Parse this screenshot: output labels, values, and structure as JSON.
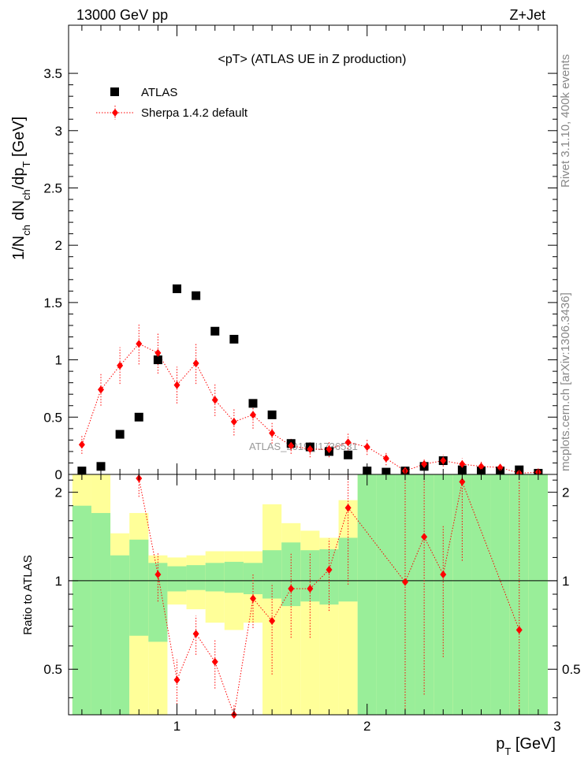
{
  "header": {
    "left": "13000 GeV pp",
    "right": "Z+Jet"
  },
  "side_labels": {
    "rivet": "Rivet 3.1.10,  400k events",
    "mcplots": "mcplots.cern.ch [arXiv:1306.3436]"
  },
  "chart_data": [
    {
      "type": "scatter",
      "title": "<pT>  (ATLAS UE in Z production)",
      "ylabel_parts": [
        "1/N",
        "ch",
        " dN",
        "ch",
        "/dp",
        "T",
        " [GeV]"
      ],
      "xlim": [
        0.43,
        3.0
      ],
      "ylim": [
        0,
        3.92
      ],
      "yticks": [
        0,
        0.5,
        1,
        1.5,
        2,
        2.5,
        3,
        3.5
      ],
      "ytick_labels": [
        "0",
        "0.5",
        "1",
        "1.5",
        "2",
        "2.5",
        "3",
        "3.5"
      ],
      "legend_position": "top-left",
      "watermark": "ATLAS_2019_I1736531",
      "x": [
        0.5,
        0.6,
        0.7,
        0.8,
        0.9,
        1.0,
        1.1,
        1.2,
        1.3,
        1.4,
        1.5,
        1.6,
        1.7,
        1.8,
        1.9,
        2.0,
        2.1,
        2.2,
        2.3,
        2.4,
        2.5,
        2.6,
        2.7,
        2.8,
        2.9
      ],
      "series": [
        {
          "name": "ATLAS",
          "color": "#000000",
          "marker": "square",
          "values": [
            0.03,
            0.07,
            0.35,
            0.5,
            1.0,
            1.62,
            1.56,
            1.25,
            1.18,
            0.62,
            0.52,
            0.27,
            0.24,
            0.2,
            0.17,
            0.03,
            0.02,
            0.03,
            0.07,
            0.12,
            0.04,
            0.03,
            0.03,
            0.04,
            0.01
          ]
        },
        {
          "name": "Sherpa 1.4.2 default",
          "color": "#ff0000",
          "marker": "diamond",
          "line": "dotted",
          "values": [
            0.26,
            0.74,
            0.95,
            1.14,
            1.06,
            0.78,
            0.97,
            0.65,
            0.46,
            0.52,
            0.36,
            0.25,
            0.22,
            0.22,
            0.28,
            0.24,
            0.14,
            0.03,
            0.09,
            0.12,
            0.09,
            0.07,
            0.06,
            0.01,
            0.02
          ],
          "errors": [
            0.08,
            0.14,
            0.16,
            0.18,
            0.18,
            0.16,
            0.18,
            0.14,
            0.12,
            0.12,
            0.09,
            0.07,
            0.07,
            0.07,
            0.08,
            0.07,
            0.06,
            0.03,
            0.04,
            0.05,
            0.05,
            0.04,
            0.03,
            0.02,
            0.02
          ]
        }
      ]
    },
    {
      "type": "scatter",
      "ylabel": "Ratio to ATLAS",
      "xlabel_main": "p",
      "xlabel_sub": "T",
      "xlabel_unit": " [GeV]",
      "xlim": [
        0.43,
        3.0
      ],
      "ylim": [
        0.35,
        2.3
      ],
      "xticks": [
        1,
        2,
        3
      ],
      "xtick_labels": [
        "1",
        "2",
        "3"
      ],
      "yticks": [
        0.5,
        1,
        2
      ],
      "ytick_labels": [
        "0.5",
        "1",
        "2"
      ],
      "reference_line": 1,
      "bin_edges": [
        0.45,
        0.55,
        0.65,
        0.75,
        0.85,
        0.95,
        1.05,
        1.15,
        1.25,
        1.35,
        1.45,
        1.55,
        1.65,
        1.75,
        1.85,
        1.95,
        2.05,
        2.15,
        2.25,
        2.35,
        2.45,
        2.55,
        2.65,
        2.75,
        2.85,
        2.95
      ],
      "bands": {
        "green_color": "#99ee99",
        "yellow_color": "#ffff99",
        "green_low": [
          0.35,
          0.35,
          0.35,
          0.65,
          0.62,
          0.92,
          0.93,
          0.92,
          0.91,
          0.9,
          0.87,
          0.82,
          0.85,
          0.83,
          0.85,
          0.35,
          0.35,
          0.35,
          0.35,
          0.35,
          0.35,
          0.35,
          0.35,
          0.35,
          0.35
        ],
        "green_high": [
          1.8,
          1.7,
          1.22,
          1.38,
          1.15,
          1.12,
          1.13,
          1.15,
          1.16,
          1.15,
          1.27,
          1.35,
          1.27,
          1.28,
          1.4,
          2.3,
          2.3,
          2.3,
          2.3,
          2.3,
          2.3,
          2.3,
          2.3,
          2.3,
          2.3
        ],
        "yellow_low": [
          0.35,
          0.35,
          0.5,
          0.35,
          0.35,
          0.83,
          0.8,
          0.72,
          0.68,
          0.72,
          0.35,
          0.35,
          0.35,
          0.35,
          0.35,
          0.35,
          0.35,
          0.35,
          0.35,
          0.35,
          0.35,
          0.35,
          0.35,
          0.35,
          0.35
        ],
        "yellow_high": [
          2.3,
          2.3,
          1.45,
          1.7,
          1.22,
          1.2,
          1.22,
          1.26,
          1.26,
          1.26,
          1.82,
          1.57,
          1.48,
          1.4,
          1.88,
          2.3,
          2.3,
          2.3,
          2.3,
          2.3,
          2.3,
          2.3,
          2.3,
          2.3,
          2.3
        ],
        "yellow_gap_bins": [
          16,
          17,
          21
        ]
      },
      "ratio_points": {
        "color": "#ff0000",
        "x": [
          0.8,
          0.9,
          1.0,
          1.1,
          1.2,
          1.3,
          1.4,
          1.5,
          1.6,
          1.7,
          1.8,
          1.9,
          2.2,
          2.3,
          2.4,
          2.5,
          2.8
        ],
        "values": [
          2.23,
          1.05,
          0.46,
          0.66,
          0.53,
          0.32,
          0.87,
          0.73,
          0.94,
          0.94,
          1.09,
          1.77,
          0.99,
          1.41,
          1.05,
          2.17,
          0.68
        ],
        "err_low": [
          0.3,
          0.2,
          0.08,
          0.1,
          0.1,
          0.06,
          0.18,
          0.25,
          0.3,
          0.3,
          0.3,
          0.8,
          0.99,
          1.0,
          0.5,
          1.0,
          0.68
        ],
        "err_high": [
          0.3,
          0.2,
          0.08,
          0.1,
          0.1,
          0.06,
          0.18,
          0.25,
          0.3,
          0.3,
          0.3,
          0.8,
          1.5,
          1.2,
          0.5,
          0.3,
          1.5
        ]
      }
    }
  ]
}
